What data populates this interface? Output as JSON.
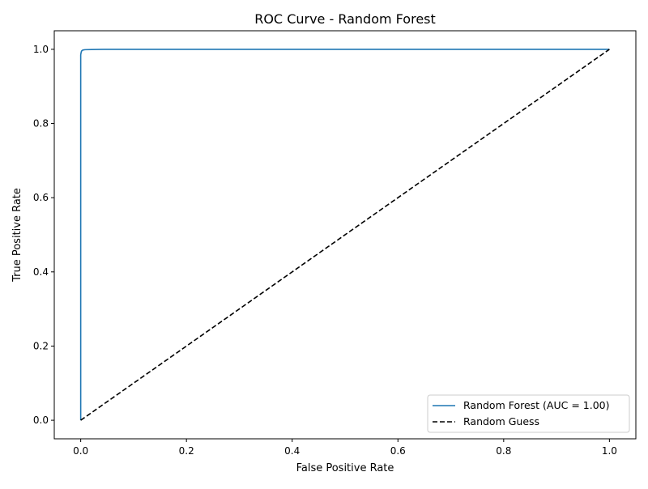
{
  "chart_data": {
    "type": "line",
    "title": "ROC Curve - Random Forest",
    "xlabel": "False Positive Rate",
    "ylabel": "True Positive Rate",
    "xlim": [
      -0.05,
      1.05
    ],
    "ylim": [
      -0.05,
      1.05
    ],
    "xticks": [
      0.0,
      0.2,
      0.4,
      0.6,
      0.8,
      1.0
    ],
    "yticks": [
      0.0,
      0.2,
      0.4,
      0.6,
      0.8,
      1.0
    ],
    "xtick_labels": [
      "0.0",
      "0.2",
      "0.4",
      "0.6",
      "0.8",
      "1.0"
    ],
    "ytick_labels": [
      "0.0",
      "0.2",
      "0.4",
      "0.6",
      "0.8",
      "1.0"
    ],
    "grid": false,
    "legend_position": "lower-right",
    "series": [
      {
        "name": "Random Forest (AUC = 1.00)",
        "color": "#1f77b4",
        "line_style": "solid",
        "x": [
          0.0,
          0.0,
          0.0,
          0.001,
          0.002,
          0.004,
          0.008,
          0.02,
          0.05,
          0.1,
          0.3,
          0.6,
          1.0
        ],
        "y": [
          0.0,
          0.9,
          0.985,
          0.993,
          0.996,
          0.998,
          0.999,
          0.9995,
          1.0,
          1.0,
          1.0,
          1.0,
          1.0
        ]
      },
      {
        "name": "Random Guess",
        "color": "#000000",
        "line_style": "dashed",
        "x": [
          0.0,
          1.0
        ],
        "y": [
          0.0,
          1.0
        ]
      }
    ]
  }
}
